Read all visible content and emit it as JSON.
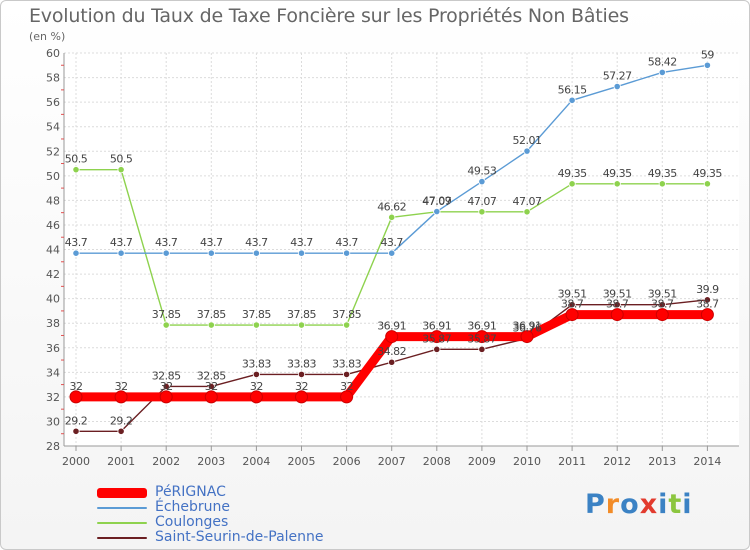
{
  "chart_data": {
    "type": "line",
    "title": "Evolution du Taux de Taxe Foncière sur les Propriétés Non Bâties",
    "ylabel": "(en %)",
    "xlabel": "",
    "x": [
      "2000",
      "2001",
      "2002",
      "2003",
      "2004",
      "2005",
      "2006",
      "2007",
      "2008",
      "2009",
      "2010",
      "2011",
      "2012",
      "2013",
      "2014"
    ],
    "ylim": [
      28,
      60
    ],
    "yticks": [
      "28",
      "30",
      "32",
      "34",
      "36",
      "38",
      "40",
      "42",
      "44",
      "46",
      "48",
      "50",
      "52",
      "54",
      "56",
      "58",
      "60"
    ],
    "series": [
      {
        "name": "Saint-Seurin-de-Palenne",
        "color": "#6b1f22",
        "values": [
          29.2,
          29.2,
          32.85,
          32.85,
          33.83,
          33.83,
          33.83,
          34.82,
          35.87,
          35.87,
          36.76,
          39.51,
          39.51,
          39.51,
          39.9
        ],
        "labels": [
          "29.2",
          "29.2",
          "32.85",
          "32.85",
          "33.83",
          "33.83",
          "33.83",
          "34.82",
          "35.87",
          "35.87",
          "36.76",
          "39.51",
          "39.51",
          "39.51",
          "39.9"
        ]
      },
      {
        "name": "Coulonges",
        "color": "#8ed24e",
        "values": [
          50.5,
          50.5,
          37.85,
          37.85,
          37.85,
          37.85,
          37.85,
          46.62,
          47.07,
          47.07,
          47.07,
          49.35,
          49.35,
          49.35,
          49.35
        ],
        "labels": [
          "50.5",
          "50.5",
          "37.85",
          "37.85",
          "37.85",
          "37.85",
          "37.85",
          "46.62",
          "47.07",
          "47.07",
          "47.07",
          "49.35",
          "49.35",
          "49.35",
          "49.35"
        ]
      },
      {
        "name": "Échebrune",
        "color": "#5b9bd5",
        "values": [
          43.7,
          43.7,
          43.7,
          43.7,
          43.7,
          43.7,
          43.7,
          43.7,
          47.09,
          49.53,
          52.01,
          56.15,
          57.27,
          58.42,
          59
        ],
        "labels": [
          "43.7",
          "43.7",
          "43.7",
          "43.7",
          "43.7",
          "43.7",
          "43.7",
          "43.7",
          "47.09",
          "49.53",
          "52.01",
          "56.15",
          "57.27",
          "58.42",
          "59"
        ]
      },
      {
        "name": "PéRIGNAC",
        "color": "#ff0000",
        "values": [
          32,
          32,
          32,
          32,
          32,
          32,
          32,
          36.91,
          36.91,
          36.91,
          36.91,
          38.7,
          38.7,
          38.7,
          38.7
        ],
        "labels": [
          "32",
          "32",
          "32",
          "32",
          "32",
          "32",
          "32",
          "36.91",
          "36.91",
          "36.91",
          "36.91",
          "38.7",
          "38.7",
          "38.7",
          "38.7"
        ]
      }
    ],
    "legend": [
      {
        "name": "PéRIGNAC",
        "color": "#ff0000"
      },
      {
        "name": "Échebrune",
        "color": "#5b9bd5"
      },
      {
        "name": "Coulonges",
        "color": "#8ed24e"
      },
      {
        "name": "Saint-Seurin-de-Palenne",
        "color": "#6b1f22"
      }
    ],
    "legend_position": "bottom-left",
    "grid": true
  },
  "branding": {
    "letters": [
      "P",
      "r",
      "o",
      "x",
      "i",
      "t",
      "i"
    ],
    "colors": [
      "#3b82c4",
      "#f28c28",
      "#3b82c4",
      "#e23b2e",
      "#3b82c4",
      "#8cc63f",
      "#3b82c4"
    ]
  }
}
